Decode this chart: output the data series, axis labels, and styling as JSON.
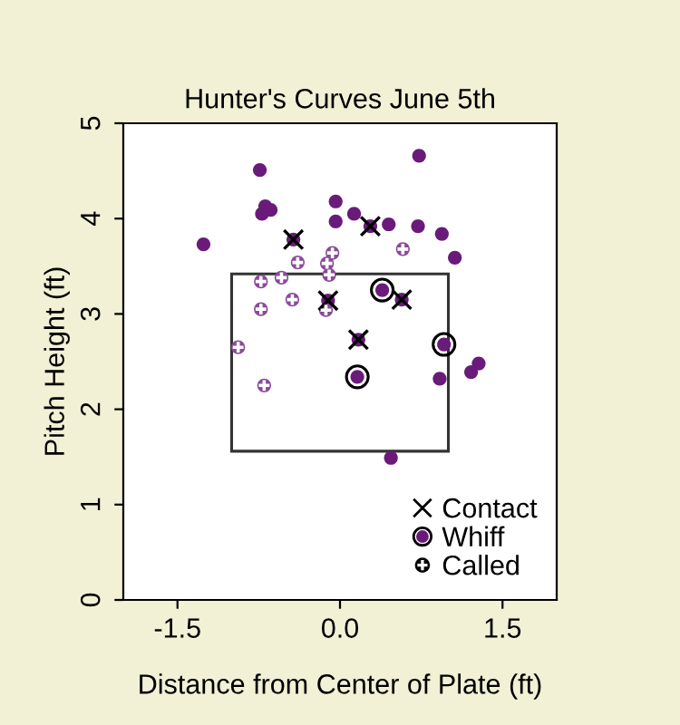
{
  "chart_data": {
    "type": "scatter",
    "title": "Hunter's Curves June 5th",
    "xlabel": "Distance from Center of Plate (ft)",
    "ylabel": "Pitch Height (ft)",
    "xlim": [
      -2,
      2
    ],
    "ylim": [
      0,
      5
    ],
    "xticks": [
      {
        "value": -1.5,
        "label": "-1.5"
      },
      {
        "value": 0,
        "label": "0.0"
      },
      {
        "value": 1.5,
        "label": "1.5"
      }
    ],
    "yticks": [
      0,
      1,
      2,
      3,
      4,
      5
    ],
    "grid": false,
    "legend": "bottom right",
    "series": [
      {
        "color": "#6a1b7a",
        "marker": "circle",
        "x": [
          -1.26,
          -0.74,
          -0.69,
          -0.72,
          -0.64,
          -0.04,
          -0.04,
          0.13,
          0.45,
          0.73,
          0.72,
          0.94,
          1.06,
          0.92,
          1.21,
          1.28,
          0.47
        ],
        "values": [
          3.73,
          4.51,
          4.13,
          4.05,
          4.09,
          4.18,
          3.97,
          4.05,
          3.94,
          4.66,
          3.92,
          3.84,
          3.59,
          2.32,
          2.39,
          2.48,
          1.49
        ]
      },
      {
        "name": "Contact",
        "color": "#6a1b7a",
        "marker": "circle",
        "x": [
          -0.43,
          0.28,
          -0.11,
          0.57,
          0.17
        ],
        "values": [
          3.78,
          3.92,
          3.14,
          3.15,
          2.73
        ]
      },
      {
        "name": "Whiff",
        "color": "#6a1b7a",
        "marker": "circle",
        "x": [
          0.39,
          0.96,
          0.16
        ],
        "values": [
          3.25,
          2.68,
          2.34
        ]
      },
      {
        "name": "Called",
        "color": "#8a4a9a",
        "marker": "circle",
        "x": [
          -0.07,
          -0.39,
          -0.12,
          -0.54,
          -0.1,
          -0.73,
          -0.44,
          -0.73,
          -0.13,
          0.58,
          -0.94,
          -0.7
        ],
        "values": [
          3.64,
          3.54,
          3.53,
          3.38,
          3.41,
          3.34,
          3.15,
          3.05,
          3.04,
          3.68,
          2.65,
          2.25
        ]
      }
    ]
  }
}
